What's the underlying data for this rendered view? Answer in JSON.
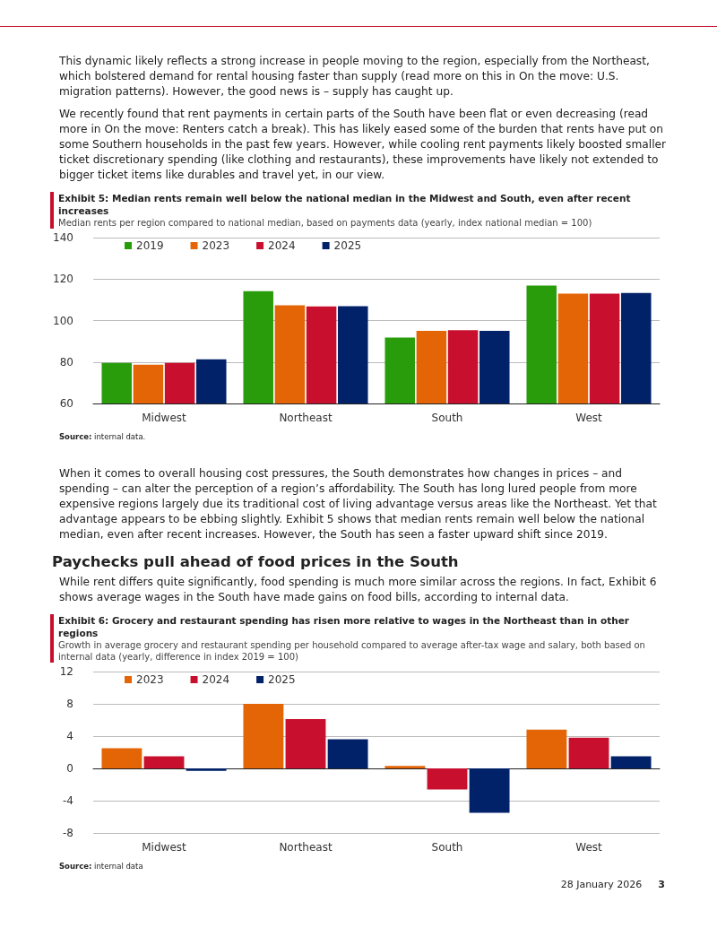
{
  "chart_data": [
    {
      "type": "bar",
      "title": "Exhibit 5: Median rents remain well below the national median in the Midwest and South, even after recent increases",
      "subtitle": "Median rents per region compared to national median, based on payments data (yearly, index national median = 100)",
      "categories": [
        "Midwest",
        "Northeast",
        "South",
        "West"
      ],
      "series": [
        {
          "name": "2019",
          "color": "#299c0c",
          "values": [
            79.6,
            114.2,
            91.8,
            116.9
          ]
        },
        {
          "name": "2023",
          "color": "#e36506",
          "values": [
            78.7,
            107.3,
            95.0,
            113.0
          ]
        },
        {
          "name": "2024",
          "color": "#c8102e",
          "values": [
            79.6,
            106.8,
            95.4,
            113.0
          ]
        },
        {
          "name": "2025",
          "color": "#012169",
          "values": [
            81.3,
            106.9,
            95.0,
            113.3
          ]
        }
      ],
      "ylim": [
        60,
        140
      ],
      "yticks": [
        60,
        80,
        100,
        120,
        140
      ],
      "grid": "y",
      "legend": "top left",
      "annotations": [
        "This dynamic likely reflects a strong increase in people moving to the region, especially from the Northeast, which bolstered demand for rental housing faster than supply (read more on this in On the move: U.S. migration patterns). However, the good news is – supply has caught up.",
        "We recently found that rent payments in certain parts of the South have been flat or even decreasing (read more in On the move: Renters catch a break). This has likely eased some of the burden that rents have put on some Southern households in the past few years. However, while cooling rent payments likely boosted smaller ticket discretionary spending (like clothing and restaurants), these improvements have likely not extended to bigger ticket items like durables and travel yet, in our view.",
        "Source: internal data."
      ]
    },
    {
      "type": "bar",
      "title": "Exhibit 6: Grocery and restaurant spending has risen more relative to wages in the Northeast than in other regions",
      "subtitle": "Growth in average grocery and restaurant spending per household compared to average after-tax wage and salary, both based on internal data (yearly, difference in index 2019 = 100)",
      "categories": [
        "Midwest",
        "Northeast",
        "South",
        "West"
      ],
      "series": [
        {
          "name": "2023",
          "color": "#e36506",
          "values": [
            2.5,
            8.0,
            0.3,
            4.8
          ]
        },
        {
          "name": "2024",
          "color": "#c8102e",
          "values": [
            1.5,
            6.1,
            -2.6,
            3.8
          ]
        },
        {
          "name": "2025",
          "color": "#012169",
          "values": [
            -0.3,
            3.6,
            -5.5,
            1.5
          ]
        }
      ],
      "ylim": [
        -8,
        12
      ],
      "yticks": [
        -8,
        -4,
        0,
        4,
        8,
        12
      ],
      "grid": "y",
      "legend": "top left",
      "annotations": [
        "When it comes to overall housing cost pressures, the South demonstrates how changes in prices – and spending – can alter the perception of a region’s affordability. The South has long lured people from more expensive regions largely due its traditional cost of living advantage versus areas like the Northeast. Yet that advantage appears to be ebbing slightly. Exhibit 5 shows that median rents remain well below the national median, even after recent increases. However, the South has seen a faster upward shift since 2019.",
        "Paychecks pull ahead of food prices in the South",
        "While rent differs quite significantly, food spending is much more similar across the regions. In fact, Exhibit 6 shows average wages in the South have made gains on food bills, according to internal data.",
        "Source: internal data",
        "28 January 2026",
        "3"
      ]
    }
  ]
}
